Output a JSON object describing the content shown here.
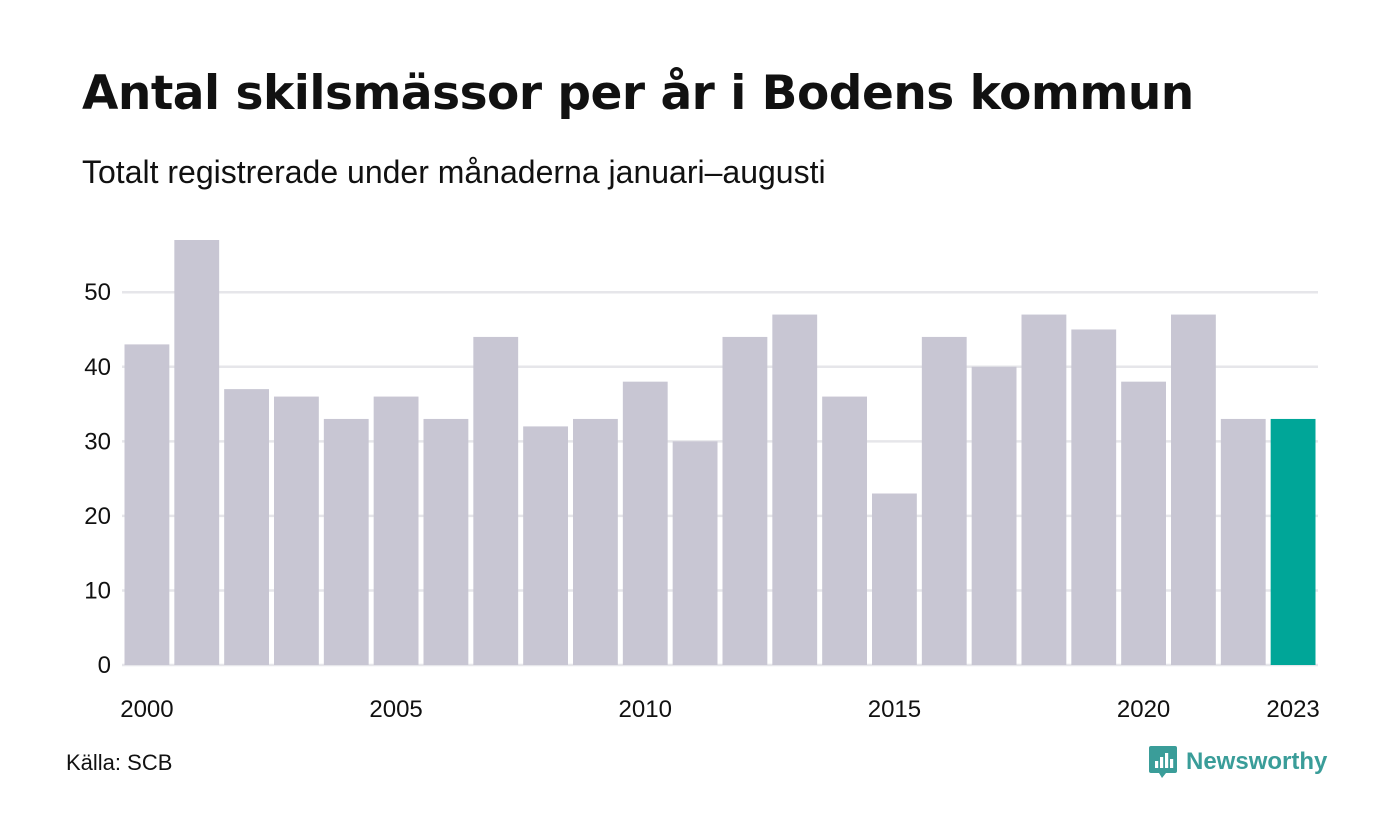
{
  "title": "Antal skilsmässor per år i Bodens kommun",
  "subtitle": "Totalt registrerade under månaderna januari–augusti",
  "source": "Källa: SCB",
  "brand": {
    "name": "Newsworthy",
    "icon": "newsworthy-logo-icon",
    "color": "#3a9d99"
  },
  "chart_data": {
    "type": "bar",
    "categories": [
      "2000",
      "2001",
      "2002",
      "2003",
      "2004",
      "2005",
      "2006",
      "2007",
      "2008",
      "2009",
      "2010",
      "2011",
      "2012",
      "2013",
      "2014",
      "2015",
      "2016",
      "2017",
      "2018",
      "2019",
      "2020",
      "2021",
      "2022",
      "2023"
    ],
    "values": [
      43,
      57,
      37,
      36,
      33,
      36,
      33,
      44,
      32,
      33,
      38,
      30,
      44,
      47,
      36,
      23,
      44,
      40,
      47,
      45,
      38,
      47,
      33,
      33
    ],
    "x_tick_labels": [
      "2000",
      "2005",
      "2010",
      "2015",
      "2020",
      "2023"
    ],
    "y_ticks": [
      0,
      10,
      20,
      30,
      40,
      50
    ],
    "ylim": [
      0,
      57
    ],
    "grid": true,
    "colors": {
      "bar": "#c8c6d3",
      "highlight": "#00a698",
      "grid": "#e6e6ea"
    },
    "highlight_category": "2023"
  }
}
